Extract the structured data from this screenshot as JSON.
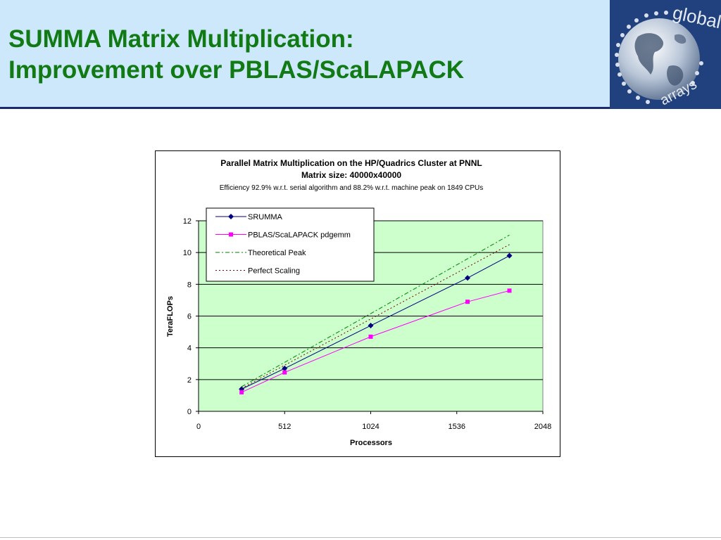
{
  "slide": {
    "title_line1": "SUMMA Matrix Multiplication:",
    "title_line2": "Improvement over PBLAS/ScaLAPACK"
  },
  "logo": {
    "text_global": "global",
    "text_arrays": "arrays",
    "icon": "globe-icon"
  },
  "chart_data": {
    "type": "line",
    "title": "Parallel Matrix Multiplication on the HP/Quadrics Cluster at PNNL",
    "subtitle": "Matrix size: 40000x40000",
    "note": "Efficiency 92.9% w.r.t. serial algorithm and 88.2% w.r.t. machine peak on 1849 CPUs",
    "xlabel": "Processors",
    "ylabel": "TeraFLOPs",
    "xlim": [
      0,
      2048
    ],
    "ylim": [
      0,
      12
    ],
    "xticks": [
      0,
      512,
      1024,
      1536,
      2048
    ],
    "yticks": [
      0,
      2,
      4,
      6,
      8,
      10,
      12
    ],
    "grid": "horizontal",
    "plot_background": "#ccffcc",
    "legend_position": "top-left",
    "series": [
      {
        "name": "SRUMMA",
        "color": "#000080",
        "dash": "",
        "marker": "diamond",
        "x": [
          256,
          512,
          1024,
          1600,
          1849
        ],
        "y": [
          1.4,
          2.7,
          5.4,
          8.4,
          9.8
        ]
      },
      {
        "name": "PBLAS/ScaLAPACK pdgemm",
        "color": "#ff00ff",
        "dash": "",
        "marker": "square",
        "x": [
          256,
          512,
          1024,
          1600,
          1849
        ],
        "y": [
          1.2,
          2.45,
          4.7,
          6.9,
          7.6
        ]
      },
      {
        "name": "Theoretical Peak",
        "color": "#008000",
        "dash": "6,3,2,3",
        "marker": "none",
        "x": [
          256,
          1849
        ],
        "y": [
          1.55,
          11.1
        ]
      },
      {
        "name": "Perfect Scaling",
        "color": "#800000",
        "dash": "2,3",
        "marker": "none",
        "x": [
          256,
          1849
        ],
        "y": [
          1.45,
          10.5
        ]
      }
    ]
  }
}
